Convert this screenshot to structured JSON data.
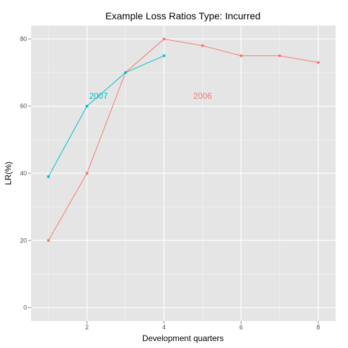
{
  "chart_data": {
    "type": "line",
    "title": "Example Loss Ratios  Type: Incurred",
    "xlabel": "Development quarters",
    "ylabel": "LR(%)",
    "xlim": [
      0.55,
      8.45
    ],
    "ylim": [
      -4,
      84
    ],
    "x_ticks": [
      2,
      4,
      6,
      8
    ],
    "y_ticks": [
      0,
      20,
      40,
      60,
      80
    ],
    "grid": true,
    "legend": "none",
    "background": "#e5e5e5",
    "series": [
      {
        "name": "2006",
        "color": "#f8766d",
        "x": [
          1,
          2,
          3,
          4,
          5,
          6,
          7,
          8
        ],
        "y": [
          20,
          40,
          70,
          80,
          78,
          75,
          75,
          73
        ],
        "label_at": [
          5,
          63
        ]
      },
      {
        "name": "2007",
        "color": "#00bfc4",
        "x": [
          1,
          2,
          3,
          4
        ],
        "y": [
          39,
          60,
          70,
          75
        ],
        "label_at": [
          2.3,
          63
        ]
      }
    ]
  }
}
